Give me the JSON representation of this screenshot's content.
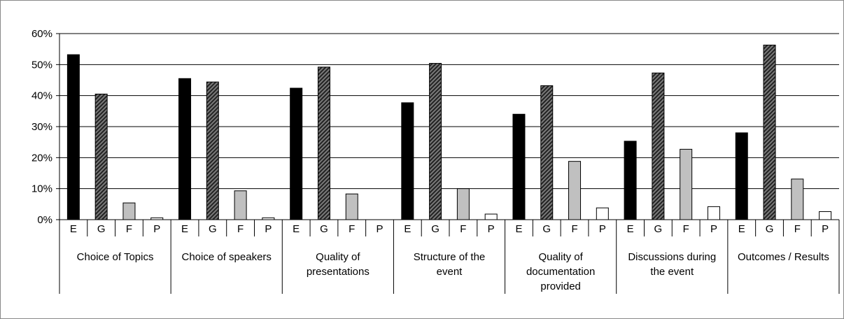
{
  "chart_data": {
    "type": "bar",
    "y_ticks": [
      "0%",
      "10%",
      "20%",
      "30%",
      "40%",
      "50%",
      "60%"
    ],
    "ylim": [
      0,
      60
    ],
    "grid": true,
    "legend": "none",
    "sub_categories": [
      "E",
      "G",
      "F",
      "P"
    ],
    "groups": [
      {
        "label": [
          "Choice of Topics"
        ],
        "values": [
          53.2,
          40.5,
          5.4,
          0.6
        ]
      },
      {
        "label": [
          "Choice of speakers"
        ],
        "values": [
          45.5,
          44.4,
          9.3,
          0.6
        ]
      },
      {
        "label": [
          "Quality of",
          "presentations"
        ],
        "values": [
          42.4,
          49.2,
          8.3,
          0
        ]
      },
      {
        "label": [
          "Structure of the",
          "event"
        ],
        "values": [
          37.7,
          50.4,
          10.0,
          1.8
        ]
      },
      {
        "label": [
          "Quality of",
          "documentation",
          "provided"
        ],
        "values": [
          34.0,
          43.2,
          18.8,
          3.8
        ]
      },
      {
        "label": [
          "Discussions during",
          "the event"
        ],
        "values": [
          25.3,
          47.3,
          22.7,
          4.2
        ]
      },
      {
        "label": [
          "Outcomes / Results"
        ],
        "values": [
          28.0,
          56.3,
          13.1,
          2.6
        ]
      }
    ],
    "series_colors": {
      "E": "#000000",
      "G": "#555555",
      "F": "#c0c0c0",
      "P": "#ffffff"
    }
  }
}
